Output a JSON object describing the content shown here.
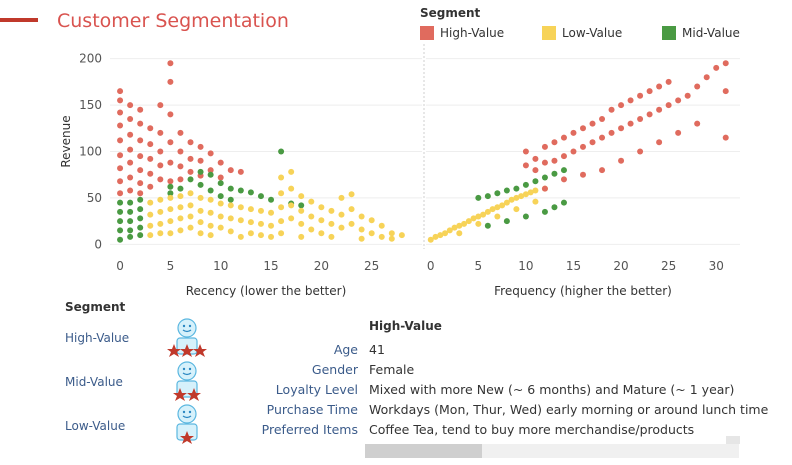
{
  "title": "Customer Segmentation",
  "colors": {
    "accent": "#c0392b",
    "title": "#d9534f",
    "high": "#e06b5e",
    "low": "#f7d358",
    "mid": "#4a9a43",
    "axis_text": "#555555",
    "grid": "#eeeeee"
  },
  "legend": {
    "title": "Segment",
    "items": [
      {
        "label": "High-Value",
        "color": "#e06b5e"
      },
      {
        "label": "Low-Value",
        "color": "#f7d358"
      },
      {
        "label": "Mid-Value",
        "color": "#4a9a43"
      }
    ]
  },
  "chart_data": [
    {
      "type": "scatter",
      "xlabel": "Recency (lower the better)",
      "ylabel": "Revenue",
      "xticks": [
        0,
        5,
        10,
        15,
        20,
        25
      ],
      "yticks": [
        0,
        50,
        100,
        150,
        200
      ],
      "xlim": [
        -1,
        30
      ],
      "ylim": [
        -5,
        205
      ],
      "grid": true,
      "series": [
        {
          "name": "High-Value",
          "color": "#e06b5e",
          "points": [
            [
              0,
              165
            ],
            [
              0,
              155
            ],
            [
              0,
              142
            ],
            [
              0,
              128
            ],
            [
              0,
              112
            ],
            [
              0,
              96
            ],
            [
              0,
              82
            ],
            [
              0,
              68
            ],
            [
              0,
              55
            ],
            [
              1,
              150
            ],
            [
              1,
              135
            ],
            [
              1,
              118
            ],
            [
              1,
              102
            ],
            [
              1,
              88
            ],
            [
              1,
              72
            ],
            [
              1,
              58
            ],
            [
              2,
              145
            ],
            [
              2,
              130
            ],
            [
              2,
              112
            ],
            [
              2,
              95
            ],
            [
              2,
              80
            ],
            [
              2,
              66
            ],
            [
              2,
              55
            ],
            [
              3,
              125
            ],
            [
              3,
              108
            ],
            [
              3,
              92
            ],
            [
              3,
              76
            ],
            [
              3,
              62
            ],
            [
              4,
              150
            ],
            [
              4,
              120
            ],
            [
              4,
              100
            ],
            [
              4,
              85
            ],
            [
              4,
              70
            ],
            [
              5,
              195
            ],
            [
              5,
              175
            ],
            [
              5,
              140
            ],
            [
              5,
              110
            ],
            [
              5,
              88
            ],
            [
              5,
              68
            ],
            [
              6,
              120
            ],
            [
              6,
              100
            ],
            [
              6,
              84
            ],
            [
              6,
              70
            ],
            [
              7,
              110
            ],
            [
              7,
              92
            ],
            [
              7,
              78
            ],
            [
              8,
              105
            ],
            [
              8,
              90
            ],
            [
              8,
              74
            ],
            [
              9,
              98
            ],
            [
              9,
              80
            ],
            [
              10,
              88
            ],
            [
              10,
              72
            ],
            [
              11,
              80
            ],
            [
              12,
              78
            ]
          ]
        },
        {
          "name": "Mid-Value",
          "color": "#4a9a43",
          "points": [
            [
              0,
              45
            ],
            [
              0,
              35
            ],
            [
              0,
              25
            ],
            [
              0,
              15
            ],
            [
              0,
              5
            ],
            [
              1,
              45
            ],
            [
              1,
              35
            ],
            [
              1,
              25
            ],
            [
              1,
              15
            ],
            [
              1,
              8
            ],
            [
              2,
              48
            ],
            [
              2,
              38
            ],
            [
              2,
              28
            ],
            [
              2,
              18
            ],
            [
              2,
              10
            ],
            [
              5,
              55
            ],
            [
              5,
              62
            ],
            [
              6,
              60
            ],
            [
              7,
              70
            ],
            [
              8,
              78
            ],
            [
              8,
              64
            ],
            [
              9,
              75
            ],
            [
              9,
              58
            ],
            [
              10,
              66
            ],
            [
              10,
              52
            ],
            [
              11,
              60
            ],
            [
              11,
              48
            ],
            [
              12,
              58
            ],
            [
              13,
              56
            ],
            [
              14,
              52
            ],
            [
              15,
              48
            ],
            [
              16,
              100
            ],
            [
              17,
              44
            ],
            [
              18,
              42
            ]
          ]
        },
        {
          "name": "Low-Value",
          "color": "#f7d358",
          "points": [
            [
              3,
              45
            ],
            [
              3,
              32
            ],
            [
              3,
              20
            ],
            [
              3,
              10
            ],
            [
              4,
              48
            ],
            [
              4,
              35
            ],
            [
              4,
              22
            ],
            [
              4,
              12
            ],
            [
              5,
              50
            ],
            [
              5,
              38
            ],
            [
              5,
              25
            ],
            [
              5,
              12
            ],
            [
              6,
              52
            ],
            [
              6,
              40
            ],
            [
              6,
              28
            ],
            [
              6,
              15
            ],
            [
              7,
              55
            ],
            [
              7,
              42
            ],
            [
              7,
              30
            ],
            [
              7,
              18
            ],
            [
              8,
              50
            ],
            [
              8,
              36
            ],
            [
              8,
              24
            ],
            [
              8,
              12
            ],
            [
              9,
              48
            ],
            [
              9,
              34
            ],
            [
              9,
              20
            ],
            [
              9,
              10
            ],
            [
              10,
              44
            ],
            [
              10,
              30
            ],
            [
              10,
              18
            ],
            [
              11,
              42
            ],
            [
              11,
              28
            ],
            [
              11,
              14
            ],
            [
              12,
              40
            ],
            [
              12,
              26
            ],
            [
              12,
              8
            ],
            [
              13,
              38
            ],
            [
              13,
              24
            ],
            [
              13,
              12
            ],
            [
              14,
              36
            ],
            [
              14,
              22
            ],
            [
              14,
              10
            ],
            [
              15,
              34
            ],
            [
              15,
              20
            ],
            [
              15,
              8
            ],
            [
              16,
              72
            ],
            [
              16,
              55
            ],
            [
              16,
              40
            ],
            [
              16,
              25
            ],
            [
              16,
              12
            ],
            [
              17,
              78
            ],
            [
              17,
              60
            ],
            [
              17,
              42
            ],
            [
              17,
              28
            ],
            [
              18,
              52
            ],
            [
              18,
              36
            ],
            [
              18,
              22
            ],
            [
              18,
              8
            ],
            [
              19,
              46
            ],
            [
              19,
              30
            ],
            [
              19,
              16
            ],
            [
              20,
              40
            ],
            [
              20,
              26
            ],
            [
              20,
              12
            ],
            [
              21,
              36
            ],
            [
              21,
              22
            ],
            [
              21,
              8
            ],
            [
              22,
              50
            ],
            [
              22,
              32
            ],
            [
              22,
              18
            ],
            [
              23,
              54
            ],
            [
              23,
              38
            ],
            [
              23,
              22
            ],
            [
              24,
              30
            ],
            [
              24,
              16
            ],
            [
              24,
              6
            ],
            [
              25,
              26
            ],
            [
              25,
              12
            ],
            [
              26,
              20
            ],
            [
              26,
              8
            ],
            [
              27,
              12
            ],
            [
              27,
              6
            ],
            [
              28,
              10
            ]
          ]
        }
      ]
    },
    {
      "type": "scatter",
      "xlabel": "Frequency (higher the better)",
      "ylabel": "",
      "xticks": [
        0,
        5,
        10,
        15,
        20,
        25,
        30
      ],
      "xlim": [
        -0.5,
        32.5
      ],
      "ylim": [
        -5,
        205
      ],
      "grid": true,
      "series": [
        {
          "name": "Low-Value",
          "color": "#f7d358",
          "points": [
            [
              0,
              5
            ],
            [
              0.5,
              8
            ],
            [
              1,
              10
            ],
            [
              1.5,
              12
            ],
            [
              2,
              15
            ],
            [
              2.5,
              18
            ],
            [
              3,
              20
            ],
            [
              3.5,
              22
            ],
            [
              4,
              25
            ],
            [
              4.5,
              28
            ],
            [
              5,
              30
            ],
            [
              5.5,
              32
            ],
            [
              6,
              35
            ],
            [
              6.5,
              38
            ],
            [
              7,
              40
            ],
            [
              7.5,
              42
            ],
            [
              8,
              45
            ],
            [
              8.5,
              48
            ],
            [
              9,
              50
            ],
            [
              9.5,
              52
            ],
            [
              10,
              54
            ],
            [
              10.5,
              56
            ],
            [
              11,
              58
            ],
            [
              12,
              60
            ],
            [
              3,
              12
            ],
            [
              5,
              22
            ],
            [
              7,
              30
            ],
            [
              9,
              38
            ],
            [
              11,
              46
            ]
          ]
        },
        {
          "name": "Mid-Value",
          "color": "#4a9a43",
          "points": [
            [
              5,
              50
            ],
            [
              6,
              52
            ],
            [
              7,
              55
            ],
            [
              8,
              58
            ],
            [
              9,
              60
            ],
            [
              10,
              64
            ],
            [
              11,
              68
            ],
            [
              12,
              72
            ],
            [
              13,
              76
            ],
            [
              14,
              80
            ],
            [
              6,
              20
            ],
            [
              8,
              25
            ],
            [
              10,
              30
            ],
            [
              12,
              35
            ],
            [
              13,
              40
            ],
            [
              14,
              45
            ]
          ]
        },
        {
          "name": "High-Value",
          "color": "#e06b5e",
          "points": [
            [
              10,
              85
            ],
            [
              10,
              100
            ],
            [
              11,
              80
            ],
            [
              11,
              92
            ],
            [
              12,
              88
            ],
            [
              12,
              105
            ],
            [
              13,
              90
            ],
            [
              13,
              110
            ],
            [
              14,
              95
            ],
            [
              14,
              115
            ],
            [
              15,
              100
            ],
            [
              15,
              120
            ],
            [
              16,
              105
            ],
            [
              16,
              125
            ],
            [
              17,
              110
            ],
            [
              17,
              130
            ],
            [
              18,
              115
            ],
            [
              18,
              135
            ],
            [
              19,
              120
            ],
            [
              19,
              145
            ],
            [
              20,
              125
            ],
            [
              20,
              150
            ],
            [
              21,
              130
            ],
            [
              21,
              155
            ],
            [
              22,
              135
            ],
            [
              22,
              160
            ],
            [
              23,
              140
            ],
            [
              23,
              165
            ],
            [
              24,
              145
            ],
            [
              24,
              170
            ],
            [
              25,
              150
            ],
            [
              25,
              175
            ],
            [
              26,
              155
            ],
            [
              27,
              160
            ],
            [
              28,
              170
            ],
            [
              29,
              180
            ],
            [
              30,
              190
            ],
            [
              31,
              195
            ],
            [
              31,
              165
            ],
            [
              31,
              115
            ],
            [
              12,
              60
            ],
            [
              14,
              70
            ],
            [
              16,
              75
            ],
            [
              18,
              80
            ],
            [
              20,
              90
            ],
            [
              22,
              100
            ],
            [
              24,
              110
            ],
            [
              26,
              120
            ],
            [
              28,
              130
            ]
          ]
        }
      ]
    }
  ],
  "segment_panel": {
    "header": "Segment",
    "segments": [
      {
        "label": "High-Value",
        "stars": 3
      },
      {
        "label": "Mid-Value",
        "stars": 2
      },
      {
        "label": "Low-Value",
        "stars": 1
      }
    ]
  },
  "detail": {
    "header": "High-Value",
    "rows": [
      {
        "key": "Age",
        "value": "41"
      },
      {
        "key": "Gender",
        "value": "Female"
      },
      {
        "key": "Loyalty Level",
        "value": "Mixed with more New (~ 6 months) and Mature (~ 1 year)"
      },
      {
        "key": "Purchase Time",
        "value": "Workdays (Mon, Thur, Wed) early morning or around lunch time"
      },
      {
        "key": "Preferred Items",
        "value": "Coffee Tea, tend to buy more merchandise/products"
      }
    ]
  }
}
